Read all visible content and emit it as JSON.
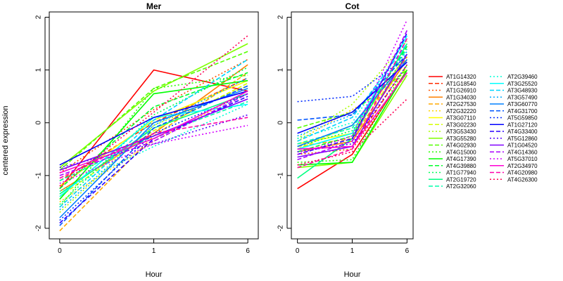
{
  "chart_data": [
    {
      "type": "line",
      "title": "Mer",
      "xlabel": "Hour",
      "ylabel": "centered expression",
      "x": [
        0,
        1,
        6
      ],
      "x_tick_labels": [
        "0",
        "1",
        "6"
      ],
      "ylim": [
        -2.2,
        2.1
      ],
      "y_ticks": [
        -2,
        -1,
        0,
        1,
        2
      ],
      "y_tick_labels": [
        "-2",
        "-1",
        "0",
        "1",
        "2"
      ],
      "grid": false,
      "series": [
        {
          "name": "AT1G14320",
          "color": "#FF0000",
          "dash": "solid",
          "values": [
            -1.25,
            1.0,
            0.6
          ]
        },
        {
          "name": "AT1G18540",
          "color": "#FF2A00",
          "dash": "dashed",
          "values": [
            -1.1,
            0.0,
            0.85
          ]
        },
        {
          "name": "AT1G26910",
          "color": "#FF5500",
          "dash": "dotted",
          "values": [
            -0.95,
            0.25,
            1.2
          ]
        },
        {
          "name": "AT1G34030",
          "color": "#FF8000",
          "dash": "solid",
          "values": [
            -1.3,
            -0.2,
            1.1
          ]
        },
        {
          "name": "AT2G27530",
          "color": "#FFAA00",
          "dash": "dashed",
          "values": [
            -2.05,
            -0.25,
            0.95
          ]
        },
        {
          "name": "AT2G32220",
          "color": "#FFD500",
          "dash": "dotted",
          "values": [
            -1.5,
            -0.35,
            0.6
          ]
        },
        {
          "name": "AT3G07110",
          "color": "#FFFF00",
          "dash": "solid",
          "values": [
            -1.2,
            0.05,
            0.8
          ]
        },
        {
          "name": "AT3G02230",
          "color": "#D5FF00",
          "dash": "dashed",
          "values": [
            -1.4,
            -0.15,
            0.75
          ]
        },
        {
          "name": "AT3G53430",
          "color": "#AAFF00",
          "dash": "dotted",
          "values": [
            -1.7,
            -0.05,
            0.7
          ]
        },
        {
          "name": "AT3G55280",
          "color": "#80FF00",
          "dash": "solid",
          "values": [
            -0.85,
            0.6,
            1.5
          ]
        },
        {
          "name": "AT4G02930",
          "color": "#55FF00",
          "dash": "dashed",
          "values": [
            -0.9,
            0.65,
            1.35
          ]
        },
        {
          "name": "AT4G15000",
          "color": "#2AFF00",
          "dash": "dotted",
          "values": [
            -1.6,
            0.65,
            0.9
          ]
        },
        {
          "name": "AT4G17390",
          "color": "#00FF00",
          "dash": "solid",
          "values": [
            -1.45,
            0.55,
            0.8
          ]
        },
        {
          "name": "AT4G39880",
          "color": "#00FF2A",
          "dash": "dashed",
          "values": [
            -1.25,
            0.3,
            0.95
          ]
        },
        {
          "name": "AT1G77940",
          "color": "#00FF55",
          "dash": "dotted",
          "values": [
            -1.55,
            0.15,
            1.05
          ]
        },
        {
          "name": "AT2G19720",
          "color": "#00FF80",
          "dash": "solid",
          "values": [
            -1.35,
            -0.1,
            0.55
          ]
        },
        {
          "name": "AT2G32060",
          "color": "#00FFAA",
          "dash": "dashed",
          "values": [
            -1.1,
            -0.25,
            0.4
          ]
        },
        {
          "name": "AT2G39460",
          "color": "#00FFD5",
          "dash": "dotted",
          "values": [
            -1.3,
            -0.45,
            0.35
          ]
        },
        {
          "name": "AT3G25520",
          "color": "#00FFFF",
          "dash": "solid",
          "values": [
            -1.4,
            0.1,
            0.35
          ]
        },
        {
          "name": "AT3G48930",
          "color": "#00D5FF",
          "dash": "dashed",
          "values": [
            -1.6,
            0.05,
            1.2
          ]
        },
        {
          "name": "AT3G57490",
          "color": "#00AAFF",
          "dash": "dotted",
          "values": [
            -1.65,
            -0.05,
            0.85
          ]
        },
        {
          "name": "AT3G60770",
          "color": "#0080FF",
          "dash": "solid",
          "values": [
            -1.8,
            0.0,
            0.65
          ]
        },
        {
          "name": "AT4G31700",
          "color": "#0055FF",
          "dash": "dashed",
          "values": [
            -1.95,
            -0.1,
            0.7
          ]
        },
        {
          "name": "AT5G59850",
          "color": "#002AFF",
          "dash": "dotted",
          "values": [
            -1.85,
            -0.2,
            0.55
          ]
        },
        {
          "name": "AT1G27120",
          "color": "#0000FF",
          "dash": "solid",
          "values": [
            -0.8,
            0.1,
            0.6
          ]
        },
        {
          "name": "AT4G33400",
          "color": "#2A00FF",
          "dash": "dashed",
          "values": [
            -1.9,
            -0.3,
            0.5
          ]
        },
        {
          "name": "AT5G12860",
          "color": "#5500FF",
          "dash": "dotted",
          "values": [
            -0.85,
            -0.4,
            0.15
          ]
        },
        {
          "name": "AT1G04520",
          "color": "#8000FF",
          "dash": "solid",
          "values": [
            -0.9,
            -0.25,
            0.45
          ]
        },
        {
          "name": "AT4G14360",
          "color": "#AA00FF",
          "dash": "dashed",
          "values": [
            -1.0,
            -0.35,
            0.55
          ]
        },
        {
          "name": "AT5G37010",
          "color": "#D500FF",
          "dash": "dotted",
          "values": [
            -1.15,
            -0.4,
            -0.05
          ]
        },
        {
          "name": "AT2G34970",
          "color": "#FF00D5",
          "dash": "solid",
          "values": [
            -0.95,
            -0.3,
            0.6
          ]
        },
        {
          "name": "AT4G20980",
          "color": "#FF00AA",
          "dash": "dashed",
          "values": [
            -1.05,
            -0.2,
            0.1
          ]
        },
        {
          "name": "AT4G26300",
          "color": "#FF0055",
          "dash": "dotted",
          "values": [
            -1.2,
            0.2,
            1.65
          ]
        }
      ]
    },
    {
      "type": "line",
      "title": "Cot",
      "xlabel": "Hour",
      "x": [
        0,
        1,
        6
      ],
      "x_tick_labels": [
        "0",
        "1",
        "6"
      ],
      "ylim": [
        -2.2,
        2.1
      ],
      "y_ticks": [
        -2,
        -1,
        0,
        1,
        2
      ],
      "y_tick_labels": [
        "-2",
        "-1",
        "0",
        "1",
        "2"
      ],
      "grid": false,
      "series": [
        {
          "name": "AT1G14320",
          "color": "#FF0000",
          "dash": "solid",
          "values": [
            -1.25,
            -0.6,
            1.0
          ]
        },
        {
          "name": "AT1G18540",
          "color": "#FF2A00",
          "dash": "dashed",
          "values": [
            -0.5,
            -0.45,
            1.1
          ]
        },
        {
          "name": "AT1G26910",
          "color": "#FF5500",
          "dash": "dotted",
          "values": [
            -0.6,
            -0.5,
            0.95
          ]
        },
        {
          "name": "AT1G34030",
          "color": "#FF8000",
          "dash": "solid",
          "values": [
            -0.55,
            -0.35,
            1.2
          ]
        },
        {
          "name": "AT2G27530",
          "color": "#FFAA00",
          "dash": "dashed",
          "values": [
            -0.45,
            -0.3,
            1.25
          ]
        },
        {
          "name": "AT2G32220",
          "color": "#FFD500",
          "dash": "dotted",
          "values": [
            -0.35,
            0.25,
            0.85
          ]
        },
        {
          "name": "AT3G07110",
          "color": "#FFFF00",
          "dash": "solid",
          "values": [
            -0.4,
            -0.2,
            1.3
          ]
        },
        {
          "name": "AT3G02230",
          "color": "#D5FF00",
          "dash": "dashed",
          "values": [
            -0.5,
            -0.05,
            1.05
          ]
        },
        {
          "name": "AT3G53430",
          "color": "#AAFF00",
          "dash": "dotted",
          "values": [
            -0.3,
            0.35,
            1.55
          ]
        },
        {
          "name": "AT3G55280",
          "color": "#80FF00",
          "dash": "solid",
          "values": [
            -0.85,
            -0.75,
            0.9
          ]
        },
        {
          "name": "AT4G02930",
          "color": "#55FF00",
          "dash": "dashed",
          "values": [
            -0.1,
            0.2,
            1.0
          ]
        },
        {
          "name": "AT4G15000",
          "color": "#2AFF00",
          "dash": "dotted",
          "values": [
            -0.75,
            -0.7,
            1.1
          ]
        },
        {
          "name": "AT4G17390",
          "color": "#00FF00",
          "dash": "solid",
          "values": [
            -0.8,
            -0.75,
            1.0
          ]
        },
        {
          "name": "AT4G39880",
          "color": "#00FF2A",
          "dash": "dashed",
          "values": [
            -0.55,
            -0.25,
            1.45
          ]
        },
        {
          "name": "AT1G77940",
          "color": "#00FF55",
          "dash": "dotted",
          "values": [
            -0.45,
            -0.15,
            1.3
          ]
        },
        {
          "name": "AT2G19720",
          "color": "#00FF80",
          "dash": "solid",
          "values": [
            -1.05,
            -0.3,
            1.5
          ]
        },
        {
          "name": "AT2G32060",
          "color": "#00FFAA",
          "dash": "dashed",
          "values": [
            -0.4,
            -0.1,
            1.4
          ]
        },
        {
          "name": "AT2G39460",
          "color": "#00FFD5",
          "dash": "dotted",
          "values": [
            -0.3,
            0.0,
            1.6
          ]
        },
        {
          "name": "AT3G25520",
          "color": "#00FFFF",
          "dash": "solid",
          "values": [
            -0.5,
            -0.2,
            1.65
          ]
        },
        {
          "name": "AT3G48930",
          "color": "#00D5FF",
          "dash": "dashed",
          "values": [
            -0.35,
            0.1,
            1.5
          ]
        },
        {
          "name": "AT3G57490",
          "color": "#00AAFF",
          "dash": "dotted",
          "values": [
            -0.25,
            0.15,
            1.35
          ]
        },
        {
          "name": "AT3G60770",
          "color": "#0080FF",
          "dash": "solid",
          "values": [
            -0.45,
            -0.05,
            1.2
          ]
        },
        {
          "name": "AT4G31700",
          "color": "#0055FF",
          "dash": "dashed",
          "values": [
            0.05,
            0.15,
            1.3
          ]
        },
        {
          "name": "AT5G59850",
          "color": "#002AFF",
          "dash": "dotted",
          "values": [
            0.4,
            0.5,
            1.25
          ]
        },
        {
          "name": "AT1G27120",
          "color": "#0000FF",
          "dash": "solid",
          "values": [
            -0.2,
            0.2,
            1.15
          ]
        },
        {
          "name": "AT4G33400",
          "color": "#2A00FF",
          "dash": "dashed",
          "values": [
            -0.6,
            -0.3,
            1.7
          ]
        },
        {
          "name": "AT5G12860",
          "color": "#5500FF",
          "dash": "dotted",
          "values": [
            -0.55,
            -0.4,
            1.1
          ]
        },
        {
          "name": "AT1G04520",
          "color": "#8000FF",
          "dash": "solid",
          "values": [
            -0.65,
            -0.45,
            1.3
          ]
        },
        {
          "name": "AT4G14360",
          "color": "#AA00FF",
          "dash": "dashed",
          "values": [
            -0.7,
            -0.35,
            1.75
          ]
        },
        {
          "name": "AT5G37010",
          "color": "#D500FF",
          "dash": "dotted",
          "values": [
            -0.6,
            -0.25,
            1.95
          ]
        },
        {
          "name": "AT2G34970",
          "color": "#FF00D5",
          "dash": "solid",
          "values": [
            -0.5,
            -0.45,
            0.95
          ]
        },
        {
          "name": "AT4G20980",
          "color": "#FF00AA",
          "dash": "dashed",
          "values": [
            -0.85,
            -0.5,
            1.6
          ]
        },
        {
          "name": "AT4G26300",
          "color": "#FF0055",
          "dash": "dotted",
          "values": [
            -0.8,
            -0.55,
            0.45
          ]
        }
      ]
    }
  ],
  "legend": {
    "placement": "right",
    "columns": 2
  }
}
